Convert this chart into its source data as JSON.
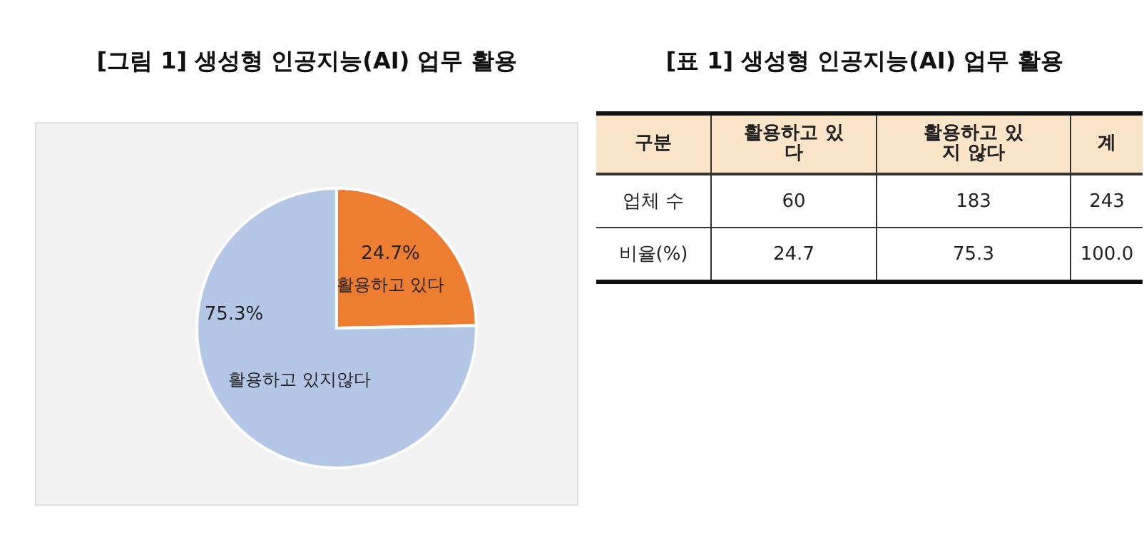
{
  "chart_data": [
    {
      "type": "pie",
      "title": "[그림 1] 생성형 인공지능(AI) 업무 활용",
      "categories": [
        "활용하고 있다",
        "활용하고 있지않다"
      ],
      "values": [
        24.7,
        75.3
      ],
      "colors": [
        "#ed7d31",
        "#b4c7e7"
      ],
      "value_labels": [
        "24.7%",
        "75.3%"
      ]
    },
    {
      "type": "other",
      "title": "[표 1] 생성형 인공지능(AI) 업무 활용",
      "annotations": [
        "구분",
        "활용하고 있다",
        "활용하고 있지 않다",
        "계",
        "업체 수",
        "60",
        "183",
        "243",
        "비율(%)",
        "24.7",
        "75.3",
        "100.0"
      ]
    }
  ]
}
